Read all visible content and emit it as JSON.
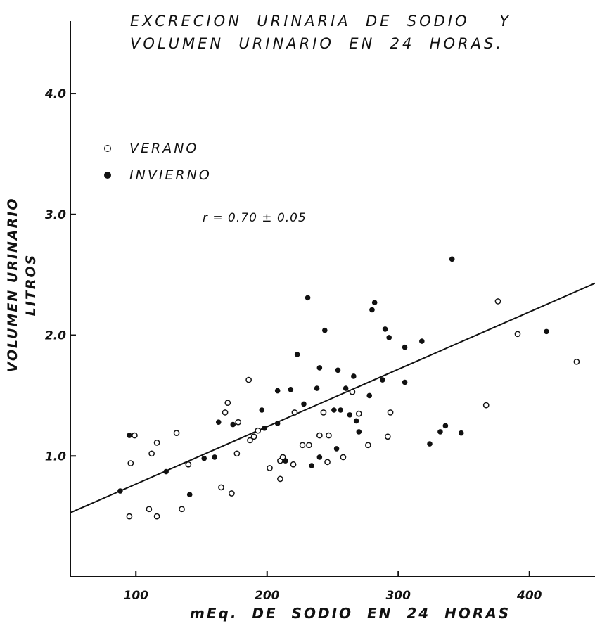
{
  "chart_data": {
    "type": "scatter",
    "title_lines": [
      "EXCRECION  URINARIA  DE  SODIO    Y",
      "VOLUMEN  URINARIO  EN  24  HORAS."
    ],
    "xlabel": "mEq.  DE  SODIO  EN 24  HORAS",
    "ylabel_lines": [
      "VOLUMEN URINARIO",
      "LITROS"
    ],
    "xlim": [
      50,
      450
    ],
    "ylim": [
      0,
      4.6
    ],
    "x_ticks": [
      100,
      200,
      300,
      400
    ],
    "x_tick_labels": [
      "100",
      "200",
      "300",
      "400"
    ],
    "y_ticks": [
      1.0,
      2.0,
      3.0,
      4.0
    ],
    "y_tick_labels": [
      "1.0",
      "2.0",
      "3.0",
      "4.0"
    ],
    "grid": false,
    "legend_position": "upper-left",
    "annotation": "r = 0.70 ± 0.05",
    "series": [
      {
        "name": "VERANO",
        "marker": "open-circle",
        "points": [
          [
            95,
            0.5
          ],
          [
            96,
            0.94
          ],
          [
            99,
            1.17
          ],
          [
            110,
            0.56
          ],
          [
            112,
            1.02
          ],
          [
            116,
            0.5
          ],
          [
            116,
            1.11
          ],
          [
            131,
            1.19
          ],
          [
            135,
            0.56
          ],
          [
            140,
            0.93
          ],
          [
            165,
            0.74
          ],
          [
            168,
            1.36
          ],
          [
            170,
            1.44
          ],
          [
            173,
            0.69
          ],
          [
            177,
            1.02
          ],
          [
            178,
            1.28
          ],
          [
            186,
            1.63
          ],
          [
            187,
            1.13
          ],
          [
            190,
            1.16
          ],
          [
            193,
            1.21
          ],
          [
            202,
            0.9
          ],
          [
            210,
            0.81
          ],
          [
            210,
            0.96
          ],
          [
            212,
            0.99
          ],
          [
            220,
            0.93
          ],
          [
            221,
            1.36
          ],
          [
            227,
            1.09
          ],
          [
            232,
            1.09
          ],
          [
            240,
            1.17
          ],
          [
            243,
            1.36
          ],
          [
            246,
            0.95
          ],
          [
            247,
            1.17
          ],
          [
            258,
            0.99
          ],
          [
            265,
            1.53
          ],
          [
            270,
            1.35
          ],
          [
            277,
            1.09
          ],
          [
            292,
            1.16
          ],
          [
            294,
            1.36
          ],
          [
            367,
            1.42
          ],
          [
            376,
            2.28
          ],
          [
            391,
            2.01
          ],
          [
            436,
            1.78
          ]
        ]
      },
      {
        "name": "INVIERNO",
        "marker": "filled-circle",
        "points": [
          [
            88,
            0.71
          ],
          [
            95,
            1.17
          ],
          [
            123,
            0.87
          ],
          [
            141,
            0.68
          ],
          [
            152,
            0.98
          ],
          [
            160,
            0.99
          ],
          [
            163,
            1.28
          ],
          [
            174,
            1.26
          ],
          [
            196,
            1.38
          ],
          [
            198,
            1.23
          ],
          [
            208,
            1.54
          ],
          [
            208,
            1.27
          ],
          [
            214,
            0.96
          ],
          [
            218,
            1.55
          ],
          [
            223,
            1.84
          ],
          [
            228,
            1.43
          ],
          [
            231,
            2.31
          ],
          [
            234,
            0.92
          ],
          [
            238,
            1.56
          ],
          [
            240,
            1.73
          ],
          [
            240,
            0.99
          ],
          [
            244,
            2.04
          ],
          [
            251,
            1.38
          ],
          [
            253,
            1.06
          ],
          [
            254,
            1.71
          ],
          [
            256,
            1.38
          ],
          [
            260,
            1.56
          ],
          [
            263,
            1.34
          ],
          [
            266,
            1.66
          ],
          [
            268,
            1.29
          ],
          [
            270,
            1.2
          ],
          [
            278,
            1.5
          ],
          [
            280,
            2.21
          ],
          [
            282,
            2.27
          ],
          [
            288,
            1.63
          ],
          [
            290,
            2.05
          ],
          [
            293,
            1.98
          ],
          [
            305,
            1.61
          ],
          [
            305,
            1.9
          ],
          [
            318,
            1.95
          ],
          [
            324,
            1.1
          ],
          [
            332,
            1.2
          ],
          [
            336,
            1.25
          ],
          [
            341,
            2.63
          ],
          [
            348,
            1.19
          ],
          [
            413,
            2.03
          ]
        ]
      }
    ],
    "regression_line": {
      "x": [
        50,
        450
      ],
      "y": [
        0.53,
        2.43
      ]
    }
  }
}
